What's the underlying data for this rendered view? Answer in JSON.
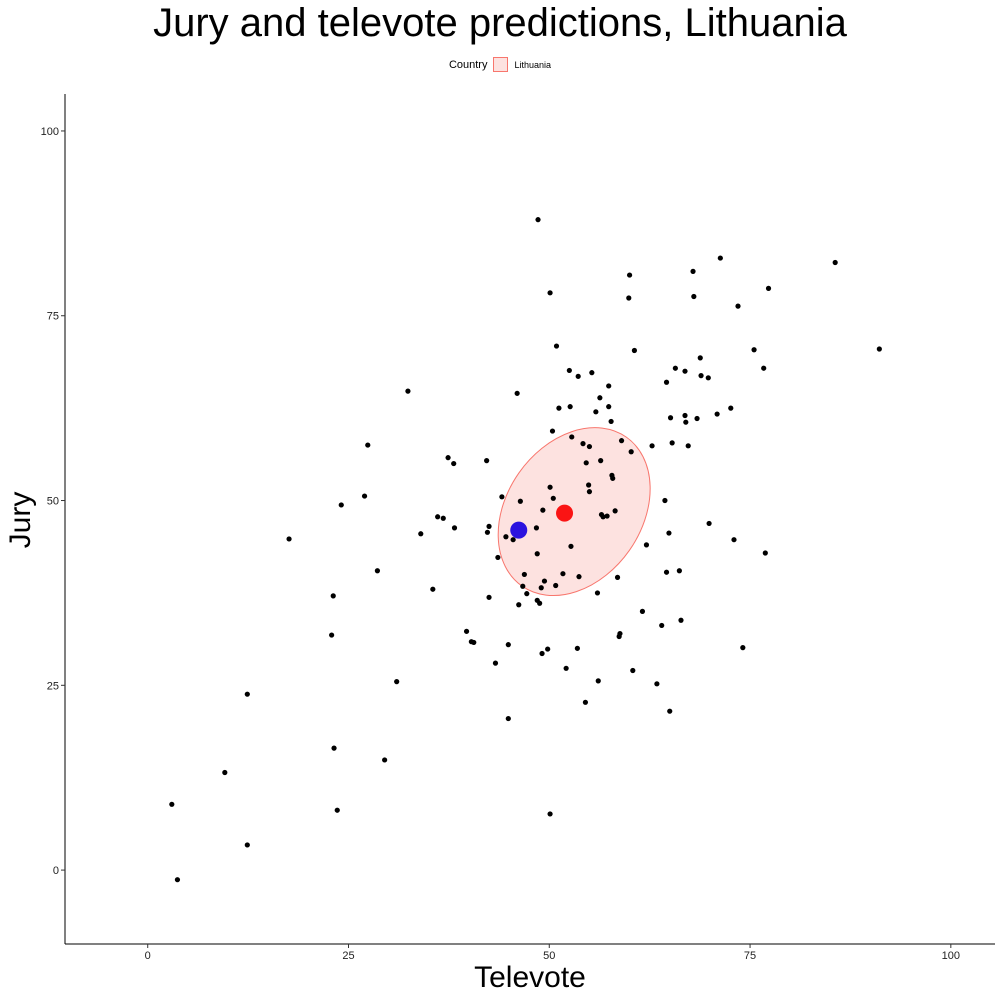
{
  "chart_data": {
    "type": "scatter",
    "title": "Jury and televote predictions, Lithuania",
    "xlabel": "Televote",
    "ylabel": "Jury",
    "xlim": [
      -10.3,
      105.5
    ],
    "ylim": [
      -10,
      105
    ],
    "x_ticks": [
      0,
      25,
      50,
      75,
      100
    ],
    "y_ticks": [
      0,
      25,
      50,
      75,
      100
    ],
    "grid": false,
    "legend": {
      "title": "Country",
      "placement": "top",
      "entries": [
        {
          "label": "Lithuania",
          "fill": "#fde2e0",
          "stroke": "#f8766d"
        }
      ]
    },
    "ellipse": {
      "label": "Lithuania",
      "center": [
        53.1,
        48.5
      ],
      "semi_axis_x": 8.4,
      "semi_axis_y": 12.3,
      "rotation_deg": 35,
      "fill": "#fde2e0",
      "stroke": "#f8766d"
    },
    "highlight_points": [
      {
        "x": 46.2,
        "y": 46.0,
        "color": "#2b13df"
      },
      {
        "x": 51.9,
        "y": 48.3,
        "color": "#fa1414"
      }
    ],
    "points": [
      [
        3.0,
        8.9
      ],
      [
        3.7,
        -1.3
      ],
      [
        9.6,
        13.2
      ],
      [
        12.4,
        23.8
      ],
      [
        12.4,
        3.4
      ],
      [
        17.6,
        44.8
      ],
      [
        22.9,
        31.8
      ],
      [
        23.1,
        37.1
      ],
      [
        23.2,
        16.5
      ],
      [
        23.6,
        8.1
      ],
      [
        24.1,
        49.4
      ],
      [
        27.0,
        50.6
      ],
      [
        27.4,
        57.5
      ],
      [
        28.6,
        40.5
      ],
      [
        29.5,
        14.9
      ],
      [
        31.0,
        25.5
      ],
      [
        32.4,
        64.8
      ],
      [
        34.0,
        45.5
      ],
      [
        35.5,
        38.0
      ],
      [
        36.1,
        47.8
      ],
      [
        36.8,
        47.6
      ],
      [
        37.4,
        55.8
      ],
      [
        38.1,
        55.0
      ],
      [
        38.2,
        46.3
      ],
      [
        39.7,
        32.3
      ],
      [
        40.3,
        30.9
      ],
      [
        40.6,
        30.8
      ],
      [
        42.2,
        55.4
      ],
      [
        42.3,
        45.7
      ],
      [
        42.5,
        46.5
      ],
      [
        42.5,
        36.9
      ],
      [
        43.3,
        28.0
      ],
      [
        43.6,
        42.3
      ],
      [
        44.1,
        50.5
      ],
      [
        44.6,
        45.1
      ],
      [
        44.9,
        20.5
      ],
      [
        44.9,
        30.5
      ],
      [
        45.5,
        44.7
      ],
      [
        46.0,
        64.5
      ],
      [
        46.2,
        35.9
      ],
      [
        46.4,
        49.9
      ],
      [
        46.7,
        38.4
      ],
      [
        46.9,
        40.0
      ],
      [
        47.2,
        37.4
      ],
      [
        48.4,
        46.3
      ],
      [
        48.5,
        42.8
      ],
      [
        48.5,
        36.5
      ],
      [
        48.6,
        88.0
      ],
      [
        48.8,
        36.1
      ],
      [
        49.0,
        38.2
      ],
      [
        49.1,
        29.3
      ],
      [
        49.2,
        48.7
      ],
      [
        49.4,
        39.1
      ],
      [
        49.8,
        29.9
      ],
      [
        50.1,
        78.1
      ],
      [
        50.1,
        51.8
      ],
      [
        50.1,
        7.6
      ],
      [
        50.4,
        59.4
      ],
      [
        50.5,
        50.3
      ],
      [
        50.8,
        38.5
      ],
      [
        50.9,
        70.9
      ],
      [
        51.2,
        62.5
      ],
      [
        51.7,
        40.1
      ],
      [
        52.1,
        27.3
      ],
      [
        52.5,
        67.6
      ],
      [
        52.6,
        62.7
      ],
      [
        52.7,
        43.8
      ],
      [
        52.8,
        58.6
      ],
      [
        53.5,
        30.0
      ],
      [
        53.6,
        66.8
      ],
      [
        53.7,
        39.7
      ],
      [
        54.2,
        57.7
      ],
      [
        54.5,
        22.7
      ],
      [
        54.6,
        55.1
      ],
      [
        54.9,
        52.1
      ],
      [
        55.0,
        51.2
      ],
      [
        55.0,
        57.3
      ],
      [
        55.3,
        67.3
      ],
      [
        55.8,
        62.0
      ],
      [
        56.0,
        37.5
      ],
      [
        56.1,
        25.6
      ],
      [
        56.3,
        63.9
      ],
      [
        56.4,
        55.4
      ],
      [
        56.5,
        48.1
      ],
      [
        56.7,
        47.8
      ],
      [
        57.2,
        47.9
      ],
      [
        57.4,
        65.5
      ],
      [
        57.4,
        62.7
      ],
      [
        57.7,
        60.7
      ],
      [
        57.8,
        53.4
      ],
      [
        57.9,
        53.0
      ],
      [
        58.2,
        48.6
      ],
      [
        58.5,
        39.6
      ],
      [
        58.7,
        31.6
      ],
      [
        58.8,
        32.0
      ],
      [
        59.0,
        58.1
      ],
      [
        59.9,
        77.4
      ],
      [
        60.0,
        80.5
      ],
      [
        60.2,
        56.6
      ],
      [
        60.4,
        27.0
      ],
      [
        60.6,
        70.3
      ],
      [
        61.6,
        35.0
      ],
      [
        62.1,
        44.0
      ],
      [
        62.8,
        57.4
      ],
      [
        63.4,
        25.2
      ],
      [
        64.0,
        33.1
      ],
      [
        64.4,
        50.0
      ],
      [
        64.6,
        66.0
      ],
      [
        64.6,
        40.3
      ],
      [
        64.9,
        45.6
      ],
      [
        65.0,
        21.5
      ],
      [
        65.1,
        61.2
      ],
      [
        65.3,
        57.8
      ],
      [
        65.7,
        67.9
      ],
      [
        66.2,
        40.5
      ],
      [
        66.4,
        33.8
      ],
      [
        66.9,
        61.5
      ],
      [
        66.9,
        67.5
      ],
      [
        67.0,
        60.6
      ],
      [
        67.3,
        57.4
      ],
      [
        67.9,
        81.0
      ],
      [
        68.0,
        77.6
      ],
      [
        68.4,
        61.1
      ],
      [
        68.8,
        69.3
      ],
      [
        68.9,
        66.9
      ],
      [
        69.8,
        66.6
      ],
      [
        69.9,
        46.9
      ],
      [
        70.9,
        61.7
      ],
      [
        71.3,
        82.8
      ],
      [
        72.6,
        62.5
      ],
      [
        73.0,
        44.7
      ],
      [
        73.5,
        76.3
      ],
      [
        74.1,
        30.1
      ],
      [
        75.5,
        70.4
      ],
      [
        76.7,
        67.9
      ],
      [
        76.9,
        42.9
      ],
      [
        77.3,
        78.7
      ],
      [
        85.6,
        82.2
      ],
      [
        91.1,
        70.5
      ]
    ]
  }
}
